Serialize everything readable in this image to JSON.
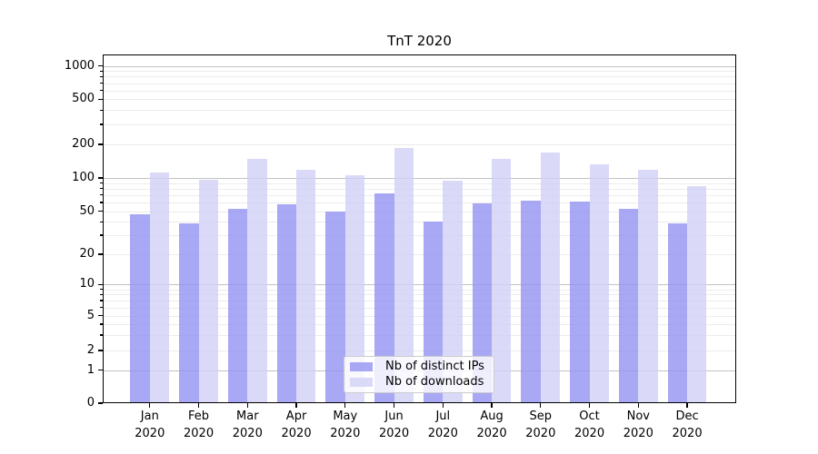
{
  "chart_data": {
    "type": "bar",
    "title": "TnT 2020",
    "categories": [
      {
        "month": "Jan",
        "year": "2020"
      },
      {
        "month": "Feb",
        "year": "2020"
      },
      {
        "month": "Mar",
        "year": "2020"
      },
      {
        "month": "Apr",
        "year": "2020"
      },
      {
        "month": "May",
        "year": "2020"
      },
      {
        "month": "Jun",
        "year": "2020"
      },
      {
        "month": "Jul",
        "year": "2020"
      },
      {
        "month": "Aug",
        "year": "2020"
      },
      {
        "month": "Sep",
        "year": "2020"
      },
      {
        "month": "Oct",
        "year": "2020"
      },
      {
        "month": "Nov",
        "year": "2020"
      },
      {
        "month": "Dec",
        "year": "2020"
      }
    ],
    "series": [
      {
        "name": "Nb of distinct IPs",
        "color": "rgba(146,146,241,0.8)",
        "solid_color": "#a8a8f4",
        "values": [
          47,
          39,
          53,
          58,
          50,
          72,
          40,
          59,
          62,
          61,
          53,
          39
        ]
      },
      {
        "name": "Nb of downloads",
        "color": "rgba(209,209,246,0.8)",
        "solid_color": "#dadaf8",
        "values": [
          111,
          97,
          147,
          118,
          106,
          184,
          94,
          149,
          169,
          132,
          118,
          84
        ]
      }
    ],
    "xlabel": "",
    "ylabel": "",
    "yscale": "symlog",
    "yticks": [
      0,
      1,
      2,
      5,
      10,
      20,
      50,
      100,
      200,
      500,
      1000
    ],
    "ylim": [
      0,
      1250
    ],
    "grid": true,
    "legend_position": "lower center",
    "axis_color": "#000000",
    "major_grid_values": [
      1,
      10,
      100,
      1000
    ]
  }
}
